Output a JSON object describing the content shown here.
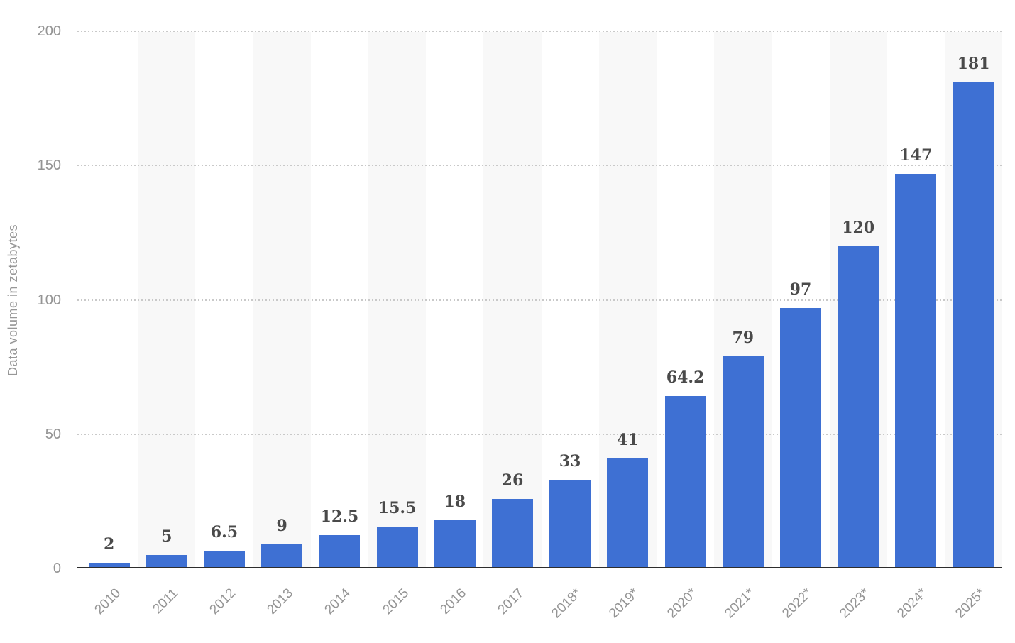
{
  "chart_data": {
    "type": "bar",
    "title": "",
    "xlabel": "",
    "ylabel": "Data volume in zetabytes",
    "categories": [
      "2010",
      "2011",
      "2012",
      "2013",
      "2014",
      "2015",
      "2016",
      "2017",
      "2018*",
      "2019*",
      "2020*",
      "2021*",
      "2022*",
      "2023*",
      "2024*",
      "2025*"
    ],
    "values": [
      2,
      5,
      6.5,
      9,
      12.5,
      15.5,
      18,
      26,
      33,
      41,
      64.2,
      79,
      97,
      120,
      147,
      181
    ],
    "value_labels": [
      "2",
      "5",
      "6.5",
      "9",
      "12.5",
      "15.5",
      "18",
      "26",
      "33",
      "41",
      "64.2",
      "79",
      "97",
      "120",
      "147",
      "181"
    ],
    "ylim": [
      0,
      200
    ],
    "yticks": [
      0,
      50,
      100,
      150,
      200
    ],
    "ytick_labels": [
      "0",
      "50",
      "100",
      "150",
      "200"
    ],
    "grid": "horizontal-dotted",
    "legend": "none",
    "estimate_marker": "*",
    "colors": {
      "bar": "#3E70D3",
      "column_stripe": "#f8f8f8",
      "gridline": "#c9c9c9",
      "axis_line": "#2d2d2d",
      "tick_label": "#949494",
      "value_label": "#4a4a4a",
      "y_axis_title": "#979797",
      "background": "#ffffff"
    }
  }
}
